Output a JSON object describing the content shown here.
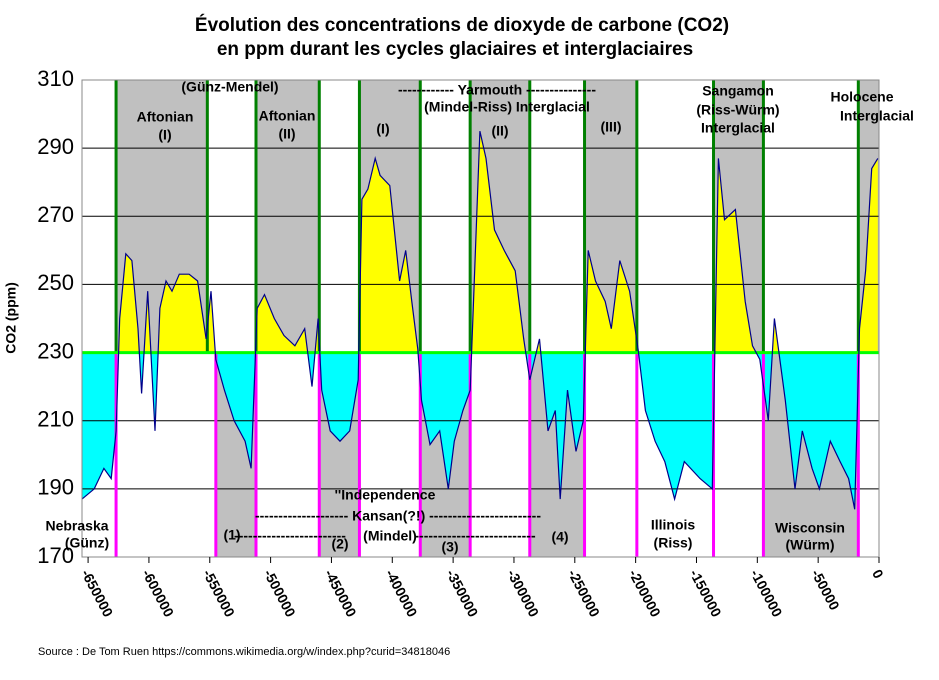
{
  "chart_data": {
    "type": "area",
    "title": "Évolution des concentrations de dioxyde de carbone (CO2)",
    "subtitle": "en ppm durant les cycles glaciaires et interglaciaires",
    "y_label": "CO2 (ppm)",
    "source": "Source : De Tom Ruen https://commons.wikimedia.org/w/index.php?curid=34818046",
    "xlim": [
      -655000,
      0
    ],
    "xticks": [
      -650000,
      -600000,
      -550000,
      -500000,
      -450000,
      -400000,
      -350000,
      -300000,
      -250000,
      -200000,
      -150000,
      -100000,
      -50000,
      0
    ],
    "ylim": [
      170,
      310
    ],
    "yticks": [
      170,
      190,
      210,
      230,
      250,
      270,
      290,
      310
    ],
    "grid": true,
    "threshold": 230,
    "colors": {
      "line": "#00008b",
      "above": "#ffff00",
      "below": "#00ffff",
      "band": "#c0c0c0",
      "threshold": "#00ff00",
      "interglacial_edge": "#008000",
      "glacial_edge": "#ff00ff"
    },
    "interglacials": [
      [
        -627000,
        -552000
      ],
      [
        -512000,
        -460000
      ],
      [
        -427000,
        -377000
      ],
      [
        -336000,
        -287000
      ],
      [
        -242000,
        -199000
      ],
      [
        -136000,
        -95000
      ],
      [
        -17000,
        0
      ]
    ],
    "glacials": [
      [
        -655000,
        -627000
      ],
      [
        -545000,
        -512000
      ],
      [
        -460000,
        -427000
      ],
      [
        -377000,
        -336000
      ],
      [
        -287000,
        -242000
      ],
      [
        -199000,
        -136000
      ],
      [
        -95000,
        -17000
      ]
    ],
    "glacial_grey": [
      false,
      true,
      true,
      true,
      true,
      false,
      true
    ],
    "x": [
      -655000,
      -645000,
      -637000,
      -631000,
      -627000,
      -624000,
      -619000,
      -614000,
      -609000,
      -606000,
      -601000,
      -595000,
      -591000,
      -586000,
      -581000,
      -575000,
      -567000,
      -560000,
      -553000,
      -549000,
      -545000,
      -538000,
      -530000,
      -521000,
      -516000,
      -511000,
      -505000,
      -497000,
      -489000,
      -480000,
      -472000,
      -466000,
      -461000,
      -458000,
      -451000,
      -443000,
      -435000,
      -428000,
      -425000,
      -420000,
      -414000,
      -410000,
      -402000,
      -394000,
      -389000,
      -384000,
      -379000,
      -376000,
      -369000,
      -361000,
      -354000,
      -349000,
      -342000,
      -336000,
      -331000,
      -328000,
      -323000,
      -316000,
      -308000,
      -299000,
      -292000,
      -287000,
      -279000,
      -272000,
      -266000,
      -262000,
      -256000,
      -249000,
      -243000,
      -239000,
      -233000,
      -225000,
      -220000,
      -213000,
      -205000,
      -198000,
      -192000,
      -184000,
      -176000,
      -168000,
      -160000,
      -147000,
      -137000,
      -132000,
      -127000,
      -118000,
      -110000,
      -104000,
      -98000,
      -91000,
      -86000,
      -77000,
      -69000,
      -63000,
      -55000,
      -49000,
      -40000,
      -32000,
      -25000,
      -20000,
      -16000,
      -11000,
      -6000,
      -1000
    ],
    "values": [
      187,
      190,
      196,
      193,
      207,
      240,
      259,
      257,
      237,
      218,
      248,
      207,
      243,
      251,
      248,
      253,
      253,
      251,
      234,
      248,
      228,
      219,
      210,
      204,
      196,
      243,
      247,
      240,
      235,
      232,
      237,
      220,
      240,
      219,
      207,
      204,
      207,
      222,
      275,
      278,
      287,
      282,
      279,
      251,
      260,
      245,
      231,
      216,
      203,
      207,
      190,
      204,
      213,
      219,
      266,
      295,
      287,
      266,
      260,
      254,
      234,
      222,
      234,
      207,
      213,
      187,
      219,
      201,
      210,
      260,
      251,
      245,
      237,
      257,
      248,
      231,
      213,
      204,
      198,
      187,
      198,
      193,
      190,
      287,
      269,
      272,
      245,
      232,
      228,
      210,
      240,
      216,
      190,
      207,
      196,
      190,
      204,
      198,
      193,
      184,
      237,
      254,
      284,
      287
    ],
    "annotations": [
      "(Günz-Mendel)",
      "Aftonian",
      "(I)",
      "Aftonian",
      "(II)",
      "(I)",
      "------------ Yarmouth   ---------------",
      "(Mindel-Riss) Interglacial",
      "(II)",
      "(III)",
      "Sangamon",
      "(Riss-Würm)",
      "Interglacial",
      "Holocene",
      "Interglacial",
      "Nebraska",
      "(Günz)",
      "''Independence",
      "-------------------- Kansan(?!) ------------------------",
      "(1)",
      "------------------------",
      "(2)",
      "(Mindel)",
      "--------------------------",
      "(3)",
      "(4)",
      "Illinois",
      "(Riss)",
      "Wisconsin",
      "(Würm)"
    ]
  }
}
